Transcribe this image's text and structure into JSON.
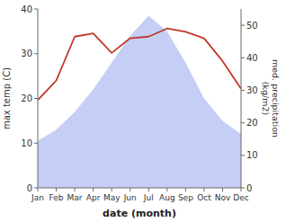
{
  "chart_data": {
    "type": "line",
    "categories": [
      "Jan",
      "Feb",
      "Mar",
      "Apr",
      "May",
      "Jun",
      "Jul",
      "Aug",
      "Sep",
      "Oct",
      "Nov",
      "Dec"
    ],
    "series": [
      {
        "type": "area",
        "color": "#c5cef5",
        "values": [
          10.5,
          13.0,
          17.0,
          22.0,
          28.0,
          34.0,
          38.5,
          35.0,
          28.0,
          20.0,
          15.0,
          12.0
        ]
      },
      {
        "type": "line",
        "color": "#c0392b",
        "axis": "y2",
        "values": [
          27.0,
          33.0,
          46.5,
          47.5,
          41.5,
          46.0,
          46.5,
          49.0,
          48.0,
          46.0,
          39.0,
          30.5
        ]
      }
    ],
    "xlabel": "date (month)",
    "ylabel": "max temp (C)",
    "y2label": "med. precipitation\n(kg/m2)",
    "ylim": [
      0,
      40
    ],
    "yticks": [
      0,
      10,
      20,
      30,
      40
    ],
    "y2lim": [
      0,
      55
    ],
    "y2ticks": [
      0,
      10,
      20,
      30,
      40,
      50
    ],
    "grid": false
  }
}
